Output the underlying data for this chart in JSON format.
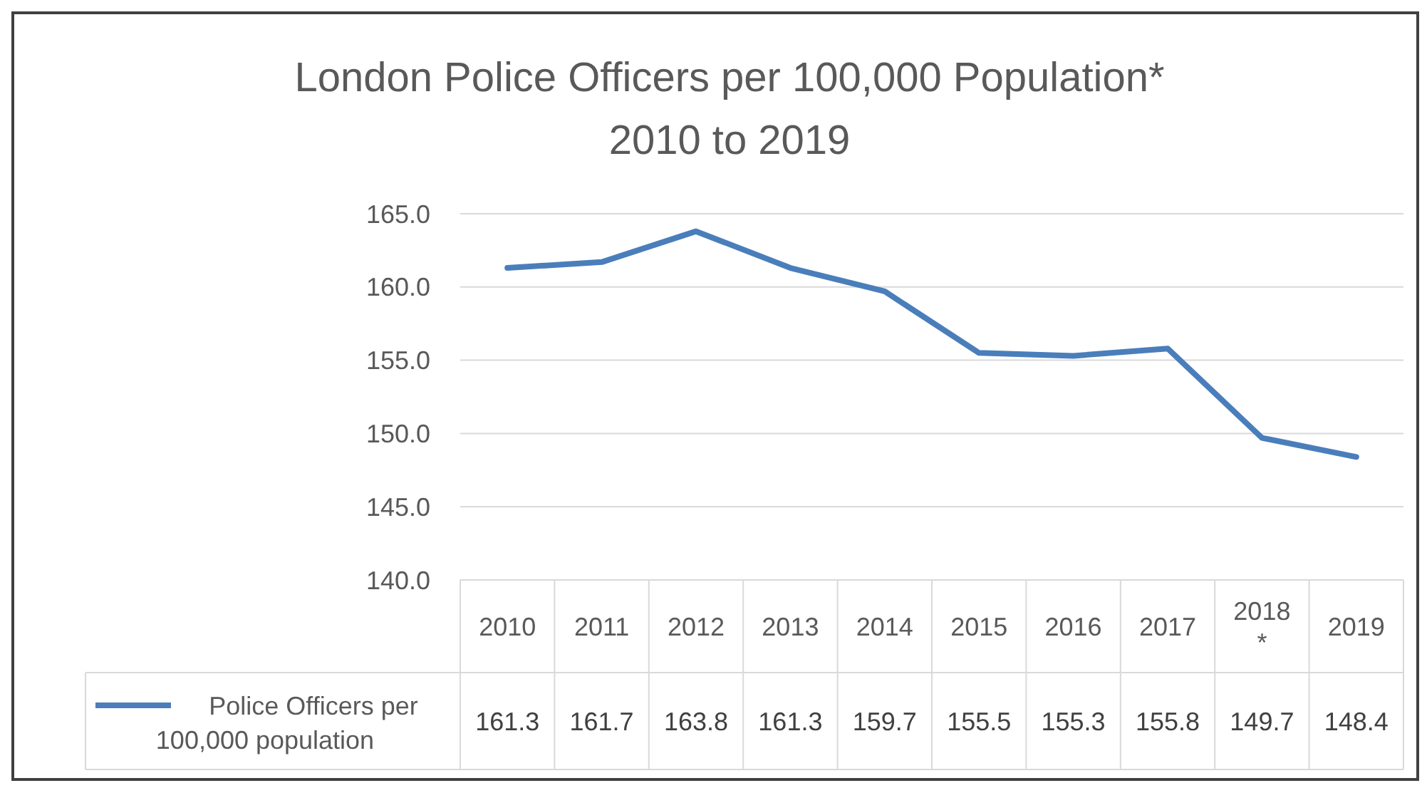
{
  "chart_data": {
    "type": "line",
    "title": "London Police Officers per 100,000 Population*\n2010 to 2019",
    "categories": [
      "2010",
      "2011",
      "2012",
      "2013",
      "2014",
      "2015",
      "2016",
      "2017",
      "2018 *",
      "2019"
    ],
    "series": [
      {
        "name": "Police Officers per 100,000 population",
        "color": "#4a7ebb",
        "values": [
          161.3,
          161.7,
          163.8,
          161.3,
          159.7,
          155.5,
          155.3,
          155.8,
          149.7,
          148.4
        ]
      }
    ],
    "ylim": [
      140,
      165
    ],
    "yticks": [
      {
        "value": 140,
        "label": "140.0"
      },
      {
        "value": 145,
        "label": "145.0"
      },
      {
        "value": 150,
        "label": "150.0"
      },
      {
        "value": 155,
        "label": "155.0"
      },
      {
        "value": 160,
        "label": "160.0"
      },
      {
        "value": 165,
        "label": "165.0"
      }
    ],
    "grid": "y",
    "legend": "bottom",
    "data_labels": true,
    "marker": "none",
    "line_style": "solid"
  }
}
